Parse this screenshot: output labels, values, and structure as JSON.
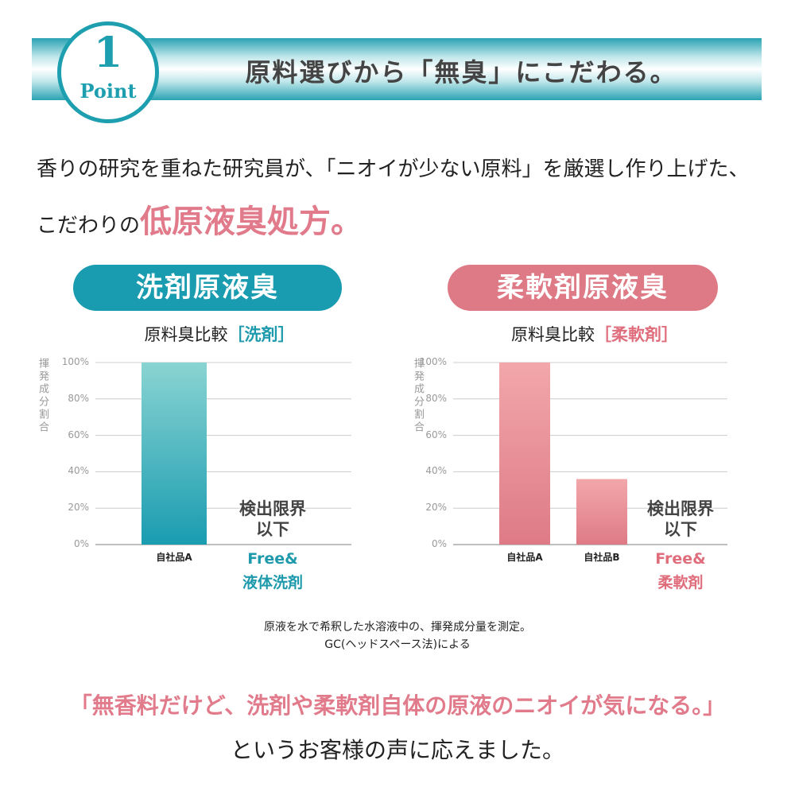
{
  "header": {
    "number": "1",
    "point": "Point",
    "title": "原料選びから「無臭」にこだわる。"
  },
  "intro": {
    "line1": "香りの研究を重ねた研究員が、「ニオイが少ない原料」を厳選し作り上げた、",
    "line2_prefix": "こだわりの",
    "line2_emphasis": "低原液臭処方。"
  },
  "chart_data": [
    {
      "type": "bar",
      "badge": "洗剤原液臭",
      "title": "原料臭比較",
      "title_tag": "［洗剤］",
      "ylabel": "揮発成分割合",
      "categories": [
        "自社品A",
        "Free&\n液体洗剤"
      ],
      "values": [
        100,
        null
      ],
      "annotation": "検出限界\n以下",
      "color": "#1a9cb0",
      "color_light": "#8ad4d2",
      "accent": "#1e9aac",
      "ylim": [
        0,
        100
      ],
      "yticks": [
        {
          "value": 0,
          "label": "0%"
        },
        {
          "value": 20,
          "label": "20%"
        },
        {
          "value": 40,
          "label": "40%"
        },
        {
          "value": 60,
          "label": "60%"
        },
        {
          "value": 80,
          "label": "80%"
        },
        {
          "value": 100,
          "label": "100%"
        }
      ],
      "grid": true
    },
    {
      "type": "bar",
      "badge": "柔軟剤原液臭",
      "title": "原料臭比較",
      "title_tag": "［柔軟剤］",
      "ylabel": "揮発成分割合",
      "categories": [
        "自社品A",
        "自社品B",
        "Free&\n柔軟剤"
      ],
      "values": [
        100,
        36,
        null
      ],
      "annotation": "検出限界\n以下",
      "color": "#de7a86",
      "color_light": "#f2a7aa",
      "accent": "#df6d7c",
      "ylim": [
        0,
        100
      ],
      "yticks": [
        {
          "value": 0,
          "label": "0%"
        },
        {
          "value": 20,
          "label": "20%"
        },
        {
          "value": 40,
          "label": "40%"
        },
        {
          "value": 60,
          "label": "60%"
        },
        {
          "value": 80,
          "label": "80%"
        },
        {
          "value": 100,
          "label": "100%"
        }
      ],
      "grid": true
    }
  ],
  "note": {
    "line1": "原液を水で希釈した水溶液中の、揮発成分量を測定。",
    "line2": "GC(ヘッドスペース法)による"
  },
  "footer": {
    "quote": "「無香料だけど、洗剤や柔軟剤自体の原液のニオイが気になる。」",
    "reply": "というお客様の声に応えました。"
  }
}
